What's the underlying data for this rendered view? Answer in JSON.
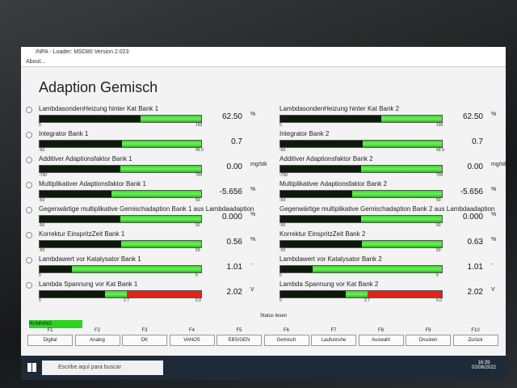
{
  "window": {
    "title": "INPA - Loader: MSD80 Version 2.023",
    "menu": "About..."
  },
  "heading": "Adaption Gemisch",
  "columns": [
    [
      {
        "label": "LambdasondenHeizung hinter Kat Bank 1",
        "min": "0",
        "max": "100",
        "value": "62.50",
        "unit": "%"
      },
      {
        "label": "Integrator Bank 1",
        "min": "-50",
        "max": "49.9",
        "value": "0.7"
      },
      {
        "label": "Additiver Adaptionsfaktor Bank 1",
        "min": "-700",
        "max": "700",
        "value": "0.00",
        "unit": "mg/stk"
      },
      {
        "label": "Multiplikativer Adaptionsfaktor Bank 1",
        "min": "-50",
        "max": "50",
        "value": "-5.656",
        "unit": "%"
      },
      {
        "label": "Gegenwärtige multiplikative Gemischadaption Bank 1 aus Lambdaadaption",
        "min": "-50",
        "max": "50",
        "value": "0.000",
        "unit": "%"
      },
      {
        "label": "Korrektur EinspritzZeit Bank 1",
        "min": "-50",
        "max": "50",
        "value": "0.56",
        "unit": "%"
      },
      {
        "label": "Lambdawert vor Katalysator Bank 1",
        "min": "0",
        "max": "5",
        "value": "1.01",
        "unit": "-"
      },
      {
        "label": "Lambda Spannung vor Kat Bank 1",
        "min": "0",
        "limit": "2.7",
        "max": "5.0",
        "value": "2.02",
        "unit": "V"
      }
    ],
    [
      {
        "label": "LambdasondenHeizung hinter Kat Bank 2",
        "min": "0",
        "max": "100",
        "value": "62.50",
        "unit": "%"
      },
      {
        "label": "Integrator Bank 2",
        "min": "-50",
        "max": "49.9",
        "value": "0.7"
      },
      {
        "label": "Additiver Adaptionsfaktor Bank 2",
        "min": "-700",
        "max": "700",
        "value": "0.00",
        "unit": "mg/stk"
      },
      {
        "label": "Multiplikativer Adaptionsfaktor Bank 2",
        "min": "-50",
        "max": "50",
        "value": "-5.656",
        "unit": "%"
      },
      {
        "label": "Gegenwärtige multiplikative Gemischadaption Bank 2 aus Lambdaadaption",
        "min": "-50",
        "max": "50",
        "value": "0.000",
        "unit": "%"
      },
      {
        "label": "Korrektur EinspritzZeit Bank 2",
        "min": "-50",
        "max": "50",
        "value": "0.63",
        "unit": "%"
      },
      {
        "label": "Lambdawert vor Katalysator Bank 2",
        "min": "0",
        "max": "5",
        "value": "1.01",
        "unit": "-"
      },
      {
        "label": "Lambda Spannung vor Kat Bank 2",
        "min": "0",
        "limit": "2.7",
        "max": "5.0",
        "value": "2.02",
        "unit": "V"
      }
    ]
  ],
  "status": {
    "state": "RUNNING",
    "label": "Status lesen"
  },
  "keys": [
    {
      "key": "F1",
      "label": "Digital"
    },
    {
      "key": "F2",
      "label": "Analog"
    },
    {
      "key": "F3",
      "label": "DK"
    },
    {
      "key": "F4",
      "label": "VANOS"
    },
    {
      "key": "F5",
      "label": "EBS/GEN"
    },
    {
      "key": "F6",
      "label": "Gemisch"
    },
    {
      "key": "F7",
      "label": "Laufunruhe"
    },
    {
      "key": "F8",
      "label": "Auswahl"
    },
    {
      "key": "F9",
      "label": "Drucken"
    },
    {
      "key": "F10",
      "label": "Zurück"
    }
  ],
  "taskbar": {
    "search": "Escribe aquí para buscar",
    "time": "16:39",
    "date": "02/06/2022"
  }
}
